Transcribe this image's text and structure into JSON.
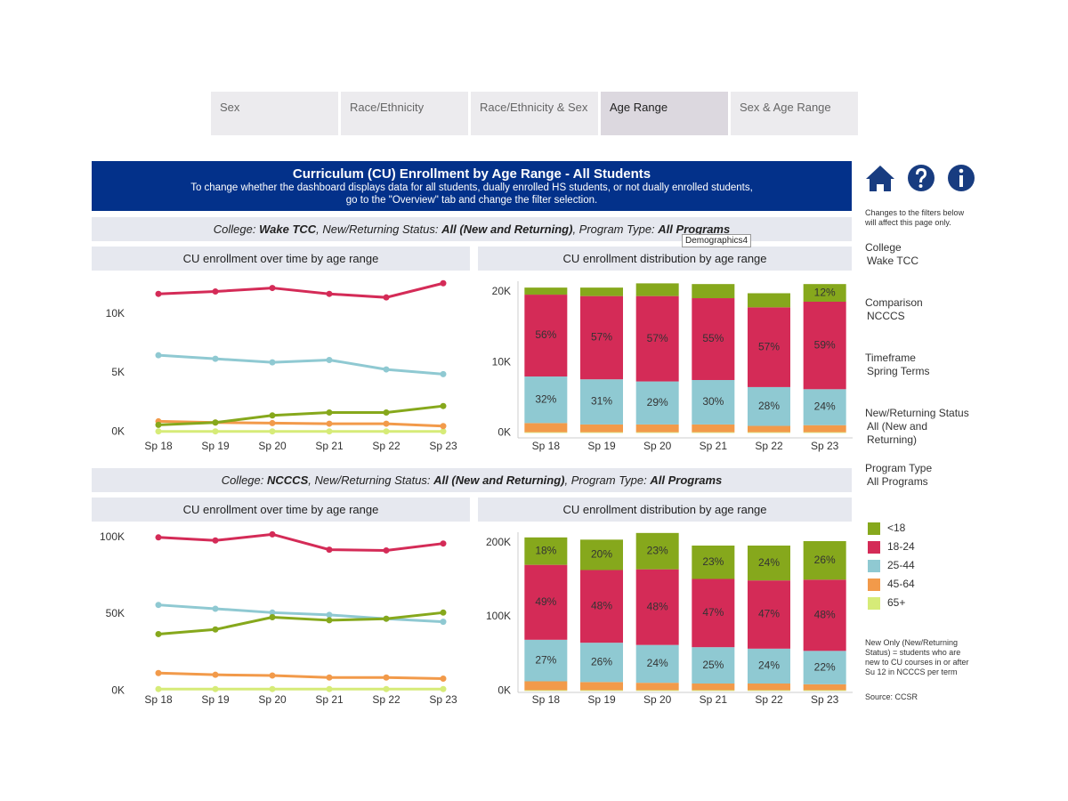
{
  "tabs": [
    "Sex",
    "Race/Ethnicity",
    "Race/Ethnicity & Sex",
    "Age Range",
    "Sex & Age Range"
  ],
  "header": {
    "title": "Curriculum (CU) Enrollment by Age Range - All Students",
    "subtitle": [
      "To change whether the dashboard displays data for all students, dually enrolled HS students, or not dually enrolled students,",
      "go to the \"Overview\" tab and change the filter selection."
    ]
  },
  "filter_bars": [
    {
      "college_label": "College:",
      "college": "Wake TCC",
      "status_label": ", New/Returning Status:",
      "status": "All (New and Returning)",
      "program_label": ", Program Type:",
      "program": "All Programs"
    },
    {
      "college_label": "College:",
      "college": "NCCCS",
      "status_label": ", New/Returning Status:",
      "status": "All (New and Returning)",
      "program_label": ", Program Type:",
      "program": "All Programs"
    }
  ],
  "tooltip": "Demographics4",
  "sidebar": {
    "note": "Changes to the filters below will affect this page only.",
    "filters": [
      {
        "label": "College",
        "value": "Wake TCC"
      },
      {
        "label": "Comparison",
        "value": "NCCCS"
      },
      {
        "label": "Timeframe",
        "value": "Spring Terms"
      },
      {
        "label": "New/Returning Status",
        "value": "All (New and Returning)"
      },
      {
        "label": "Program Type",
        "value": "All Programs"
      }
    ],
    "footnote": "New Only (New/Returning Status) = students who are new to CU courses in or after Su 12 in NCCCS per term",
    "source": "Source: CCSR"
  },
  "chart_data": [
    {
      "type": "line",
      "title": "CU enrollment over time by age range",
      "categories": [
        "Sp 18",
        "Sp 19",
        "Sp 20",
        "Sp 21",
        "Sp 22",
        "Sp 23"
      ],
      "series": [
        {
          "name": "<18",
          "color": "#86a81c",
          "values": [
            600,
            800,
            1400,
            1650,
            1650,
            2200
          ]
        },
        {
          "name": "18-24",
          "color": "#d42b57",
          "values": [
            11700,
            11900,
            12200,
            11700,
            11400,
            12600
          ]
        },
        {
          "name": "25-44",
          "color": "#8fc9d2",
          "values": [
            6500,
            6200,
            5900,
            6100,
            5300,
            4900
          ]
        },
        {
          "name": "45-64",
          "color": "#f29a4a",
          "values": [
            900,
            800,
            750,
            700,
            700,
            500
          ]
        },
        {
          "name": "65+",
          "color": "#d6eb78",
          "values": [
            50,
            50,
            50,
            50,
            50,
            50
          ]
        }
      ],
      "ylim": [
        -500,
        13600
      ],
      "yticks": [
        {
          "value": 0,
          "label": "0K"
        },
        {
          "value": 5000,
          "label": "5K"
        },
        {
          "value": 10000,
          "label": "10K"
        }
      ]
    },
    {
      "type": "bar",
      "stacked": true,
      "title": "CU enrollment distribution by age range",
      "categories": [
        "Sp 18",
        "Sp 19",
        "Sp 20",
        "Sp 21",
        "Sp 22",
        "Sp 23"
      ],
      "series": [
        {
          "name": "<18",
          "color": "#86a81c",
          "values": [
            1000,
            1200,
            1800,
            2000,
            2000,
            2500
          ],
          "segment_labels": [
            null,
            null,
            null,
            null,
            null,
            "12%"
          ]
        },
        {
          "name": "18-24",
          "color": "#d42b57",
          "values": [
            11600,
            11800,
            12100,
            11600,
            11300,
            12400
          ],
          "segment_labels": [
            "56%",
            "57%",
            "57%",
            "55%",
            "57%",
            "59%"
          ]
        },
        {
          "name": "25-44",
          "color": "#8fc9d2",
          "values": [
            6600,
            6400,
            6100,
            6300,
            5500,
            5100
          ],
          "segment_labels": [
            "32%",
            "31%",
            "29%",
            "30%",
            "28%",
            "24%"
          ]
        },
        {
          "name": "45-64",
          "color": "#f29a4a",
          "values": [
            1300,
            1100,
            1100,
            1100,
            900,
            1000
          ]
        },
        {
          "name": "65+",
          "color": "#d6eb78",
          "values": [
            100,
            100,
            100,
            100,
            100,
            100
          ]
        }
      ],
      "ylim": [
        -700,
        21500
      ],
      "yticks": [
        {
          "value": 0,
          "label": "0K"
        },
        {
          "value": 10000,
          "label": "10K"
        },
        {
          "value": 20000,
          "label": "20K"
        }
      ]
    },
    {
      "type": "line",
      "title": "CU enrollment over time by age range",
      "categories": [
        "Sp 18",
        "Sp 19",
        "Sp 20",
        "Sp 21",
        "Sp 22",
        "Sp 23"
      ],
      "series": [
        {
          "name": "<18",
          "color": "#86a81c",
          "values": [
            37000,
            40000,
            48000,
            46000,
            47000,
            51000
          ]
        },
        {
          "name": "18-24",
          "color": "#d42b57",
          "values": [
            100000,
            98000,
            102000,
            92000,
            91500,
            96000
          ]
        },
        {
          "name": "25-44",
          "color": "#8fc9d2",
          "values": [
            56000,
            53500,
            51000,
            49500,
            47000,
            45000
          ]
        },
        {
          "name": "45-64",
          "color": "#f29a4a",
          "values": [
            11600,
            10500,
            10000,
            8700,
            8700,
            8000
          ]
        },
        {
          "name": "65+",
          "color": "#d6eb78",
          "values": [
            1200,
            1200,
            1200,
            1200,
            1200,
            1200
          ]
        }
      ],
      "ylim": [
        -1000,
        108000
      ],
      "yticks": [
        {
          "value": 0,
          "label": "0K"
        },
        {
          "value": 50000,
          "label": "50K"
        },
        {
          "value": 100000,
          "label": "100K"
        }
      ]
    },
    {
      "type": "bar",
      "stacked": true,
      "title": "CU enrollment distribution by age range",
      "categories": [
        "Sp 18",
        "Sp 19",
        "Sp 20",
        "Sp 21",
        "Sp 22",
        "Sp 23"
      ],
      "series": [
        {
          "name": "<18",
          "color": "#86a81c",
          "values": [
            37000,
            41000,
            49000,
            45000,
            47000,
            52000
          ],
          "segment_labels": [
            "18%",
            "20%",
            "23%",
            "23%",
            "24%",
            "26%"
          ]
        },
        {
          "name": "18-24",
          "color": "#d42b57",
          "values": [
            101000,
            98000,
            102000,
            92000,
            92000,
            96000
          ],
          "segment_labels": [
            "49%",
            "48%",
            "48%",
            "47%",
            "47%",
            "48%"
          ]
        },
        {
          "name": "25-44",
          "color": "#8fc9d2",
          "values": [
            56000,
            53000,
            51000,
            49000,
            47000,
            45000
          ],
          "segment_labels": [
            "27%",
            "26%",
            "24%",
            "25%",
            "24%",
            "22%"
          ]
        },
        {
          "name": "45-64",
          "color": "#f29a4a",
          "values": [
            12000,
            11000,
            10000,
            9000,
            9000,
            8000
          ]
        },
        {
          "name": "65+",
          "color": "#d6eb78",
          "values": [
            1000,
            1000,
            1000,
            1000,
            1000,
            1000
          ]
        }
      ],
      "ylim": [
        -2000,
        214000
      ],
      "yticks": [
        {
          "value": 0,
          "label": "0K"
        },
        {
          "value": 100000,
          "label": "100K"
        },
        {
          "value": 200000,
          "label": "200K"
        }
      ]
    }
  ]
}
